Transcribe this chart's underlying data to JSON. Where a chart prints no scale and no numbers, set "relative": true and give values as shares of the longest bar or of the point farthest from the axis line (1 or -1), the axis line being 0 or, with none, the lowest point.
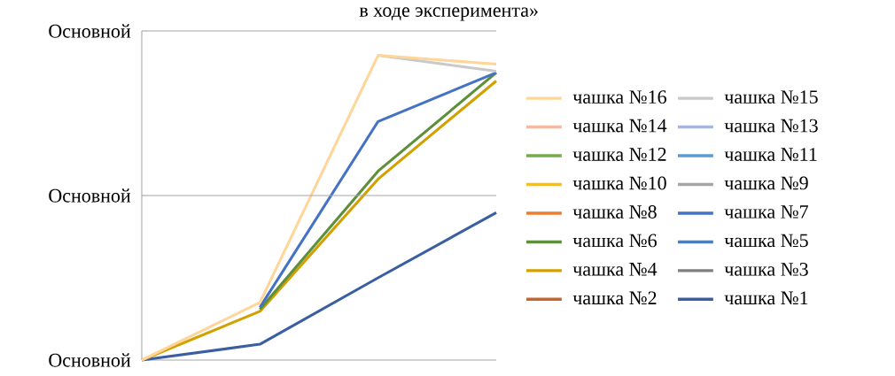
{
  "chart_data": {
    "type": "line",
    "title": "в ходе эксперимента»",
    "categories": [
      null,
      null,
      null,
      null
    ],
    "relative": true,
    "annotations": [
      "Основной"
    ],
    "ref_lines": [
      {
        "axis": "y",
        "value": 0.54,
        "label": "Основной",
        "color": "#A6A6A6"
      },
      {
        "axis": "y",
        "value": 1.08,
        "label": "Основной",
        "color": "#A6A6A6"
      }
    ],
    "legend": "right",
    "marker": "none",
    "line_style": "solid",
    "series": [
      {
        "name": "чашка №16",
        "color": "#FFD699",
        "values": [
          0,
          0.189,
          1,
          0.971
        ]
      },
      {
        "name": "чашка №15",
        "color": "#C9C9C9",
        "values": [
          null,
          null,
          1,
          0.948
        ]
      },
      {
        "name": "чашка №14",
        "color": "#F4B9A0",
        "values": [
          null,
          null,
          null,
          null
        ]
      },
      {
        "name": "чашка №13",
        "color": "#A9B7DE",
        "values": [
          null,
          null,
          null,
          null
        ]
      },
      {
        "name": "чашка №12",
        "color": "#70AD47",
        "values": [
          null,
          null,
          null,
          null
        ]
      },
      {
        "name": "чашка №11",
        "color": "#5B9BD5",
        "values": [
          null,
          null,
          null,
          null
        ]
      },
      {
        "name": "чашка №10",
        "color": "#FFC000",
        "values": [
          null,
          null,
          null,
          null
        ]
      },
      {
        "name": "чашка №9",
        "color": "#A5A5A5",
        "values": [
          null,
          null,
          null,
          null
        ]
      },
      {
        "name": "чашка №8",
        "color": "#ED7D31",
        "values": [
          null,
          null,
          null,
          null
        ]
      },
      {
        "name": "чашка №7",
        "color": "#4472C4",
        "values": [
          null,
          0.173,
          0.783,
          0.943
        ]
      },
      {
        "name": "чашка №6",
        "color": "#5E8F3A",
        "values": [
          null,
          0.167,
          0.62,
          0.943
        ]
      },
      {
        "name": "чашка №5",
        "color": "#4A7EBB",
        "values": [
          null,
          null,
          null,
          null
        ]
      },
      {
        "name": "чашка №4",
        "color": "#D4A000",
        "values": [
          0,
          0.16,
          0.594,
          0.916
        ]
      },
      {
        "name": "чашка №3",
        "color": "#7F7F7F",
        "values": [
          null,
          null,
          null,
          null
        ]
      },
      {
        "name": "чашка №2",
        "color": "#C5662E",
        "values": [
          null,
          null,
          null,
          null
        ]
      },
      {
        "name": "чашка №1",
        "color": "#3A5FA0",
        "values": [
          0,
          0.052,
          0.27,
          0.484
        ]
      }
    ]
  }
}
